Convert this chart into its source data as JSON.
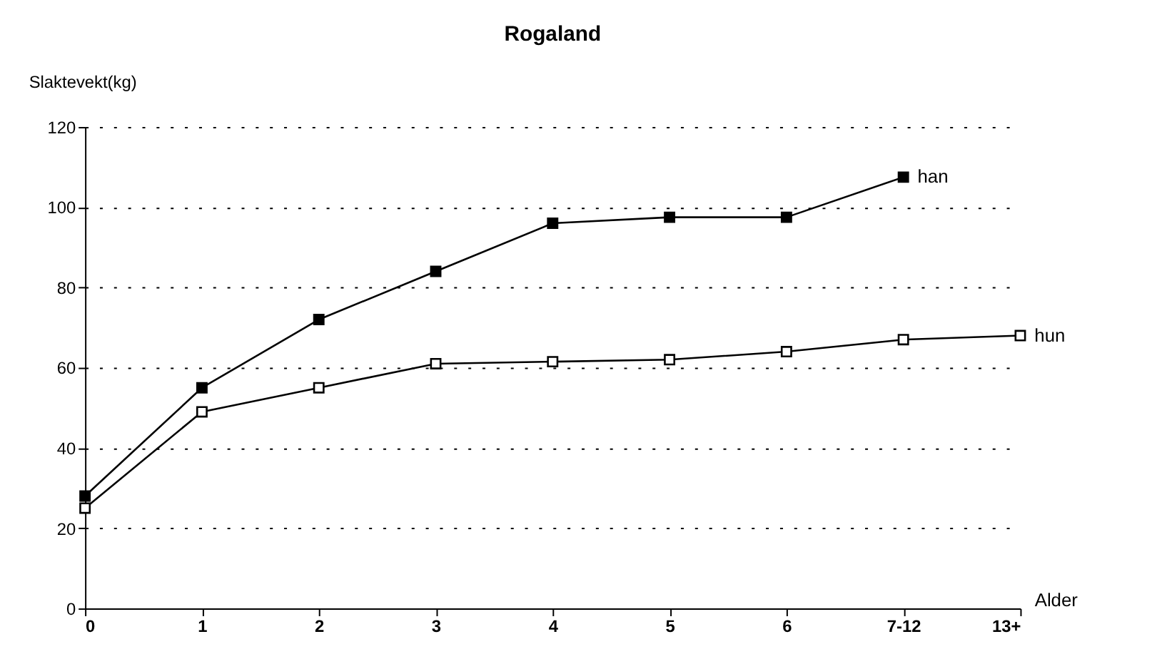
{
  "chart_data": {
    "type": "line",
    "title": "Rogaland",
    "xlabel": "Alder",
    "ylabel": "Slaktevekt(kg)",
    "categories": [
      "0",
      "1",
      "2",
      "3",
      "4",
      "5",
      "6",
      "7-12",
      "13+"
    ],
    "series": [
      {
        "name": "han",
        "color": "#000000",
        "values": [
          28,
          55,
          72,
          84,
          96,
          97.5,
          97.5,
          107.5,
          null
        ]
      },
      {
        "name": "hun",
        "color": "#000000",
        "values": [
          25,
          49,
          55,
          61,
          61.5,
          62,
          64,
          67,
          68
        ]
      }
    ],
    "ylim": [
      0,
      120
    ],
    "yticks": [
      0,
      20,
      40,
      60,
      80,
      100,
      120
    ],
    "grid": "y",
    "legend": false,
    "marker": "square",
    "line_style": "solid"
  }
}
